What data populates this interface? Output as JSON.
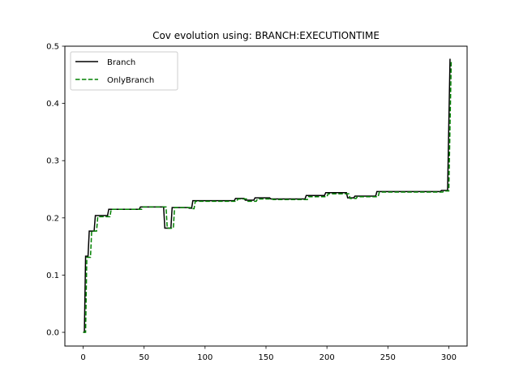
{
  "chart_data": {
    "type": "line",
    "title": "Cov evolution using: BRANCH:EXECUTIONTIME",
    "xlabel": "",
    "ylabel": "",
    "xlim": [
      -15,
      315
    ],
    "ylim": [
      -0.024,
      0.5
    ],
    "x_ticks": [
      0,
      50,
      100,
      150,
      200,
      250,
      300
    ],
    "y_ticks": [
      0.0,
      0.1,
      0.2,
      0.3,
      0.4,
      0.5
    ],
    "x_tick_labels": [
      "0",
      "50",
      "100",
      "150",
      "200",
      "250",
      "300"
    ],
    "y_tick_labels": [
      "0.0",
      "0.1",
      "0.2",
      "0.3",
      "0.4",
      "0.5"
    ],
    "grid": false,
    "legend": {
      "position": "top-left"
    },
    "series": [
      {
        "name": "Branch",
        "color": "#000000",
        "style": "solid",
        "points": [
          [
            0,
            0.0
          ],
          [
            1,
            0.0
          ],
          [
            2,
            0.133
          ],
          [
            4,
            0.133
          ],
          [
            5,
            0.177
          ],
          [
            9,
            0.177
          ],
          [
            10,
            0.204
          ],
          [
            20,
            0.204
          ],
          [
            21,
            0.215
          ],
          [
            46,
            0.215
          ],
          [
            47,
            0.219
          ],
          [
            66,
            0.219
          ],
          [
            67,
            0.182
          ],
          [
            72,
            0.182
          ],
          [
            73,
            0.218
          ],
          [
            86,
            0.218
          ],
          [
            87,
            0.217
          ],
          [
            89,
            0.217
          ],
          [
            90,
            0.23
          ],
          [
            124,
            0.23
          ],
          [
            125,
            0.234
          ],
          [
            132,
            0.234
          ],
          [
            133,
            0.231
          ],
          [
            140,
            0.231
          ],
          [
            141,
            0.235
          ],
          [
            153,
            0.235
          ],
          [
            154,
            0.233
          ],
          [
            182,
            0.233
          ],
          [
            183,
            0.239
          ],
          [
            198,
            0.239
          ],
          [
            199,
            0.244
          ],
          [
            216,
            0.244
          ],
          [
            217,
            0.235
          ],
          [
            222,
            0.235
          ],
          [
            223,
            0.238
          ],
          [
            240,
            0.238
          ],
          [
            241,
            0.246
          ],
          [
            293,
            0.246
          ],
          [
            294,
            0.248
          ],
          [
            299,
            0.248
          ],
          [
            301,
            0.478
          ]
        ]
      },
      {
        "name": "OnlyBranch",
        "color": "#008000",
        "style": "dashed",
        "points": [
          [
            0,
            0.0
          ],
          [
            2,
            0.0
          ],
          [
            3,
            0.131
          ],
          [
            6,
            0.131
          ],
          [
            7,
            0.177
          ],
          [
            11,
            0.177
          ],
          [
            12,
            0.202
          ],
          [
            22,
            0.202
          ],
          [
            23,
            0.215
          ],
          [
            48,
            0.215
          ],
          [
            49,
            0.219
          ],
          [
            68,
            0.219
          ],
          [
            69,
            0.182
          ],
          [
            74,
            0.182
          ],
          [
            75,
            0.218
          ],
          [
            88,
            0.218
          ],
          [
            89,
            0.216
          ],
          [
            91,
            0.216
          ],
          [
            92,
            0.229
          ],
          [
            126,
            0.229
          ],
          [
            127,
            0.233
          ],
          [
            134,
            0.233
          ],
          [
            135,
            0.229
          ],
          [
            142,
            0.229
          ],
          [
            143,
            0.233
          ],
          [
            155,
            0.233
          ],
          [
            156,
            0.232
          ],
          [
            184,
            0.232
          ],
          [
            185,
            0.237
          ],
          [
            200,
            0.237
          ],
          [
            201,
            0.242
          ],
          [
            218,
            0.242
          ],
          [
            219,
            0.234
          ],
          [
            224,
            0.234
          ],
          [
            225,
            0.237
          ],
          [
            242,
            0.237
          ],
          [
            243,
            0.245
          ],
          [
            295,
            0.245
          ],
          [
            296,
            0.247
          ],
          [
            300,
            0.247
          ],
          [
            302,
            0.476
          ]
        ]
      }
    ]
  }
}
